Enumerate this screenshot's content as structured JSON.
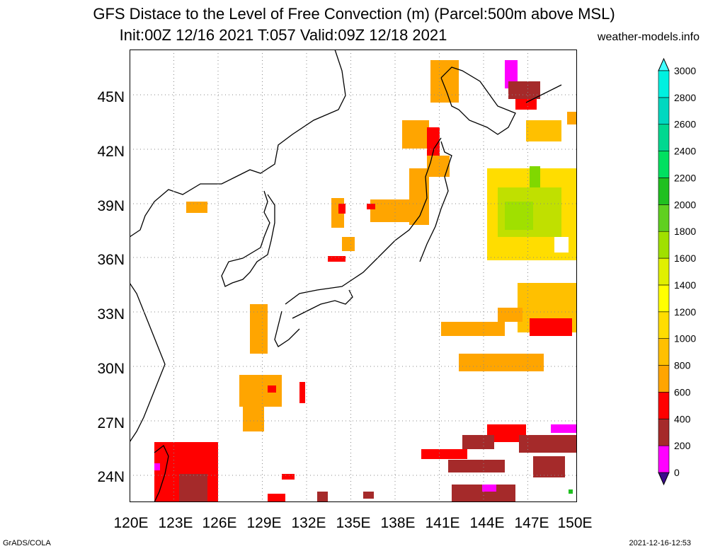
{
  "title": {
    "line1": "GFS Distace to the Level of Free Convection (m) (Parcel:500m above MSL)",
    "line2": "Init:00Z 12/16 2021 T:057 Valid:09Z 12/18 2021"
  },
  "site": "weather-models.info",
  "axes": {
    "lon_labels": [
      "120E",
      "123E",
      "126E",
      "129E",
      "132E",
      "135E",
      "138E",
      "141E",
      "144E",
      "147E",
      "150E"
    ],
    "lat_labels": [
      "24N",
      "27N",
      "30N",
      "33N",
      "36N",
      "39N",
      "42N",
      "45N"
    ],
    "lon_range": [
      120,
      150
    ],
    "lat_range": [
      22.5,
      47.5
    ]
  },
  "colorbar": {
    "labels": [
      "0",
      "200",
      "400",
      "600",
      "800",
      "1000",
      "1200",
      "1400",
      "1600",
      "1800",
      "2000",
      "2200",
      "2400",
      "2600",
      "2800",
      "3000"
    ],
    "colors": [
      "#3c0b8c",
      "#ff00ff",
      "#a52a2a",
      "#ff0000",
      "#ffa500",
      "#ffc000",
      "#ffdd00",
      "#ffff00",
      "#e0f000",
      "#a0e000",
      "#60d020",
      "#20c020",
      "#00e060",
      "#00d890",
      "#00d8c0",
      "#00f0e0",
      "#40ffff"
    ]
  },
  "footer": {
    "left": "GrADS/COLA",
    "right": "2021-12-16-12:53"
  }
}
